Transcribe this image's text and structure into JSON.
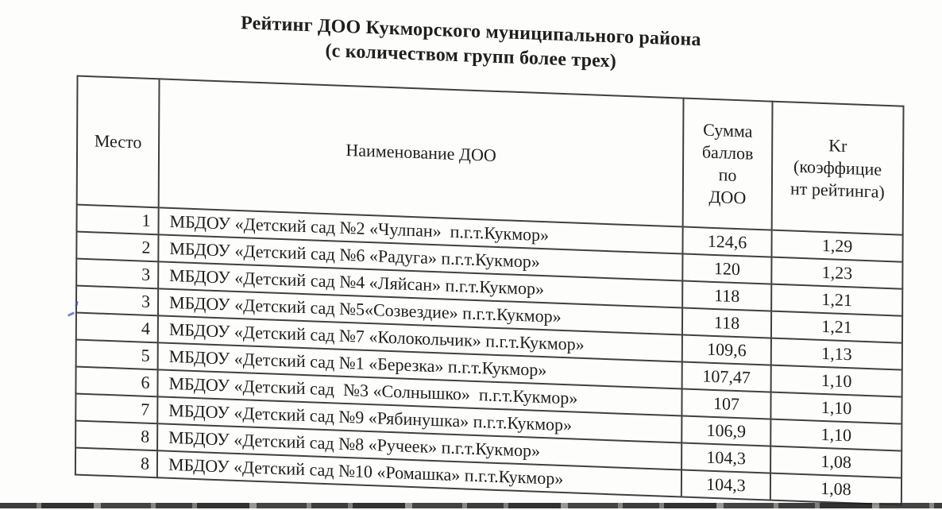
{
  "document": {
    "title_line1": "Рейтинг ДОО Кукморского муниципального района",
    "title_line2": "(с количеством групп более трех)",
    "table": {
      "headers": {
        "place": "Место",
        "name": "Наименование ДОО",
        "score_lines": [
          "Сумма",
          "баллов",
          "по",
          "ДОО"
        ],
        "kr_lines": [
          "Kr",
          "(коэффицие",
          "нт рейтинга)"
        ]
      },
      "rows": [
        {
          "place": "1",
          "name": "МБДОУ «Детский сад №2 «Чулпан»  п.г.т.Кукмор»",
          "score": "124,6",
          "kr": "1,29"
        },
        {
          "place": "2",
          "name": "МБДОУ «Детский сад №6 «Радуга» п.г.т.Кукмор»",
          "score": "120",
          "kr": "1,23"
        },
        {
          "place": "3",
          "name": "МБДОУ «Детский сад №4 «Ляйсан» п.г.т.Кукмор»",
          "score": "118",
          "kr": "1,21"
        },
        {
          "place": "3",
          "name": "МБДОУ «Детский сад №5«Созвездие» п.г.т.Кукмор»",
          "score": "118",
          "kr": "1,21"
        },
        {
          "place": "4",
          "name": "МБДОУ «Детский сад №7 «Колокольчик» п.г.т.Кукмор»",
          "score": "109,6",
          "kr": "1,13"
        },
        {
          "place": "5",
          "name": "МБДОУ «Детский сад №1 «Березка» п.г.т.Кукмор»",
          "score": "107,47",
          "kr": "1,10"
        },
        {
          "place": "6",
          "name": "МБДОУ «Детский сад  №3 «Солнышко»  п.г.т.Кукмор»",
          "score": "107",
          "kr": "1,10"
        },
        {
          "place": "7",
          "name": "МБДОУ «Детский сад №9 «Рябинушка» п.г.т.Кукмор»",
          "score": "106,9",
          "kr": "1,10"
        },
        {
          "place": "8",
          "name": "МБДОУ «Детский сад №8 «Ручеек» п.г.т.Кукмор»",
          "score": "104,3",
          "kr": "1,08"
        },
        {
          "place": "8",
          "name": "МБДОУ «Детский сад №10 «Ромашка» п.г.т.Кукмор»",
          "score": "104,3",
          "kr": "1,08"
        }
      ]
    },
    "colors": {
      "ink": "#1e1e1e",
      "table_border": "#404040",
      "blue_ink_artifact": "#4a5fb5"
    }
  }
}
